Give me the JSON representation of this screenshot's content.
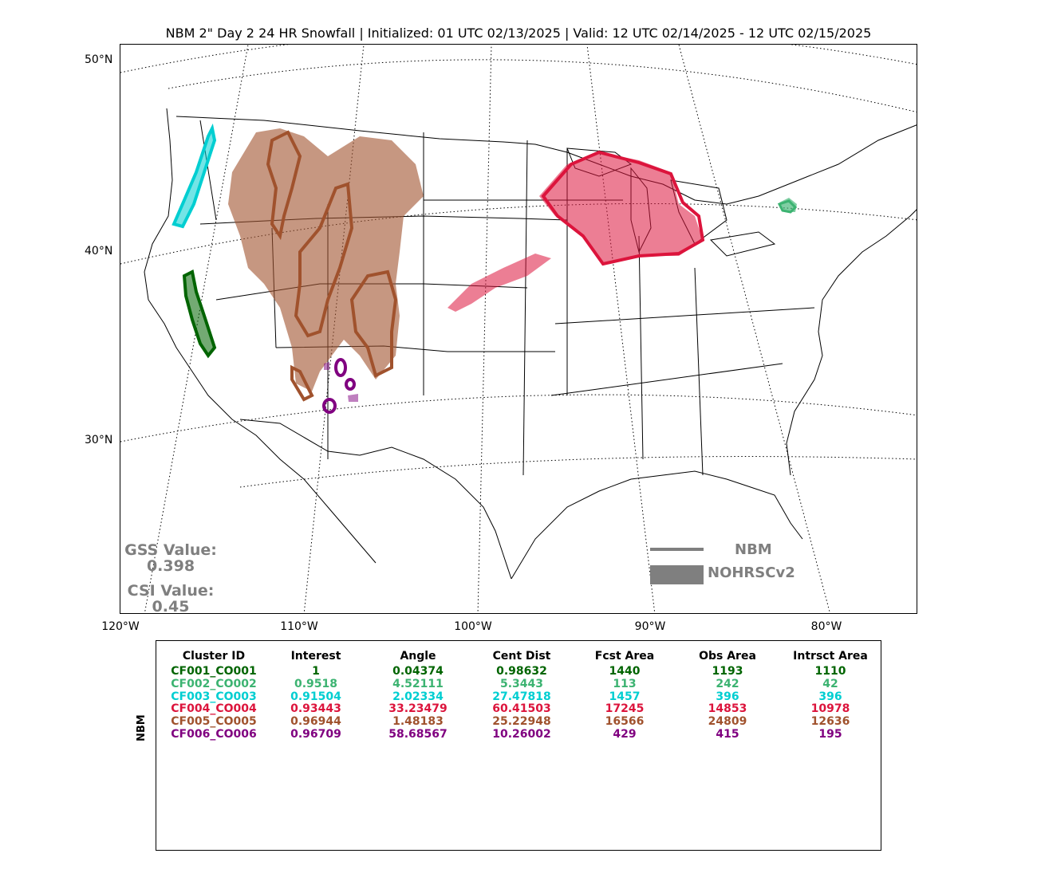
{
  "title": "NBM 2\" Day 2 24 HR Snowfall | Initialized: 01 UTC 02/13/2025 | Valid: 12 UTC 02/14/2025 - 12 UTC 02/15/2025",
  "lat_labels": [
    "50°N",
    "40°N",
    "30°N"
  ],
  "lon_labels": [
    "120°W",
    "110°W",
    "100°W",
    "90°W",
    "80°W"
  ],
  "scores": {
    "gss_label": "GSS Value:",
    "gss_value": "0.398",
    "csi_label": "CSI Value:",
    "csi_value": "0.45"
  },
  "legend": {
    "line_label": "NBM",
    "fill_label": "NOHRSCv2",
    "color": "#7f7f7f"
  },
  "table": {
    "side_label": "NBM",
    "headers": [
      "Cluster ID",
      "Interest",
      "Angle",
      "Cent Dist",
      "Fcst Area",
      "Obs Area",
      "Intrsct Area"
    ],
    "rows": [
      {
        "color": "#006400",
        "cells": [
          "CF001_CO001",
          "1",
          "0.04374",
          "0.98632",
          "1440",
          "1193",
          "1110"
        ]
      },
      {
        "color": "#3cb371",
        "cells": [
          "CF002_CO002",
          "0.9518",
          "4.52111",
          "5.3443",
          "113",
          "242",
          "42"
        ]
      },
      {
        "color": "#00ced1",
        "cells": [
          "CF003_CO003",
          "0.91504",
          "2.02334",
          "27.47818",
          "1457",
          "396",
          "396"
        ]
      },
      {
        "color": "#dc143c",
        "cells": [
          "CF004_CO004",
          "0.93443",
          "33.23479",
          "60.41503",
          "17245",
          "14853",
          "10978"
        ]
      },
      {
        "color": "#a0522d",
        "cells": [
          "CF005_CO005",
          "0.96944",
          "1.48183",
          "25.22948",
          "16566",
          "24809",
          "12636"
        ]
      },
      {
        "color": "#800080",
        "cells": [
          "CF006_CO006",
          "0.96709",
          "58.68567",
          "10.26002",
          "429",
          "415",
          "195"
        ]
      }
    ]
  },
  "map_colors": {
    "cluster1": "#006400",
    "cluster2": "#3cb371",
    "cluster3": "#00ced1",
    "cluster4": "#dc143c",
    "cluster5": "#a0522d",
    "cluster6": "#800080"
  }
}
